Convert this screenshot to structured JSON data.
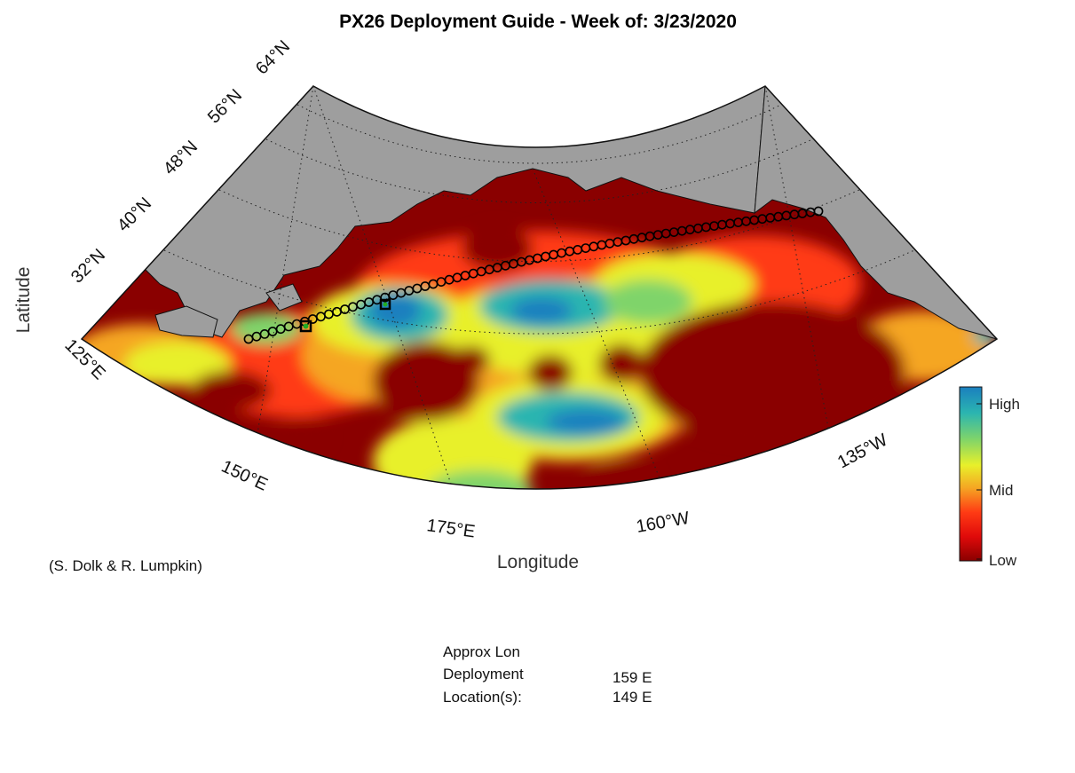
{
  "title": "PX26 Deployment Guide - Week of: 3/23/2020",
  "xlabel": "Longitude",
  "ylabel": "Latitude",
  "credit": "(S. Dolk & R. Lumpkin)",
  "lat_ticks": [
    "32°N",
    "40°N",
    "48°N",
    "56°N",
    "64°N"
  ],
  "lon_ticks": [
    "125°E",
    "150°E",
    "175°E",
    "160°W",
    "135°W"
  ],
  "colorbar": {
    "labels": [
      "High",
      "Mid",
      "Low"
    ],
    "colors": [
      "#1a7fbf",
      "#2bb5b0",
      "#7fd46a",
      "#e8f02a",
      "#f5a623",
      "#ff3b14",
      "#e00a0a",
      "#8a0000"
    ]
  },
  "colors": {
    "land": "#9e9e9e",
    "ocean_low": "#8a0000",
    "track_marker": "#e8ef3a",
    "deploy_marker": "#22aa22"
  },
  "info": {
    "heading": "Approx Lon",
    "row1_label": "Deployment",
    "row1_value": "159 E",
    "row2_label": "Location(s):",
    "row2_value": "149 E"
  }
}
